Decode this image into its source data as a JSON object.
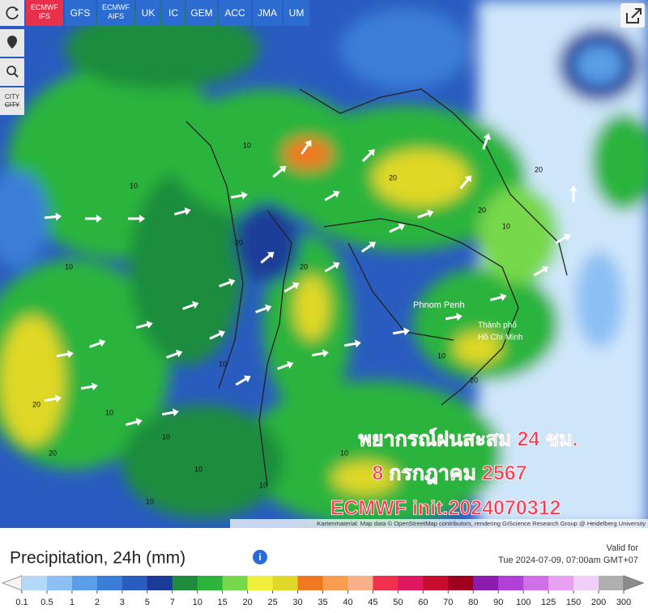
{
  "models": [
    "ECMWF IFS",
    "GFS",
    "ECMWF AIFS",
    "UK",
    "IC",
    "GEM",
    "ACC",
    "JMA",
    "UM"
  ],
  "active_model": 0,
  "tools": {
    "city": "CITY"
  },
  "map": {
    "places": {
      "phnom_penh": "Phnom Penh",
      "hcmc": [
        "Thành phố",
        "Hồ Chí Minh"
      ]
    },
    "contour_labels": [
      10,
      10,
      10,
      20,
      20,
      10,
      10,
      20,
      10,
      10,
      20,
      10,
      20,
      10,
      20,
      20,
      10,
      10,
      10,
      20
    ],
    "overlay": [
      "พยากรณ์ฝนสะสม 24 ชม.",
      "8 กรกฎาคม 2567",
      "ECMWF init.2024070312"
    ],
    "attribution": "Kartenmaterial: Map data © OpenStreetMap contributors, rendering GIScience Research Group @ Heidelberg University"
  },
  "legend": {
    "title": "Precipitation, 24h (mm)",
    "valid_label": "Valid for",
    "valid_time": "Tue 2024-07-09, 07:00am GMT+07",
    "ticks": [
      0.1,
      0.5,
      1,
      2,
      3,
      5,
      7,
      10,
      15,
      20,
      25,
      30,
      35,
      40,
      45,
      50,
      60,
      70,
      80,
      90,
      100,
      125,
      150,
      200,
      300
    ],
    "colors": [
      "#b4d8f8",
      "#8cc0f4",
      "#5a9ee8",
      "#3a7ed8",
      "#2a5cc0",
      "#1a3c98",
      "#1e8c3c",
      "#2cb43c",
      "#78d84c",
      "#f0f03c",
      "#e0d828",
      "#f07820",
      "#f89c50",
      "#f8b088",
      "#f0304c",
      "#e01860",
      "#c80c30",
      "#a00020",
      "#8c1cb0",
      "#b040d8",
      "#d070e8",
      "#e8a0f0",
      "#f0d0f8",
      "#b0b0b0"
    ]
  }
}
